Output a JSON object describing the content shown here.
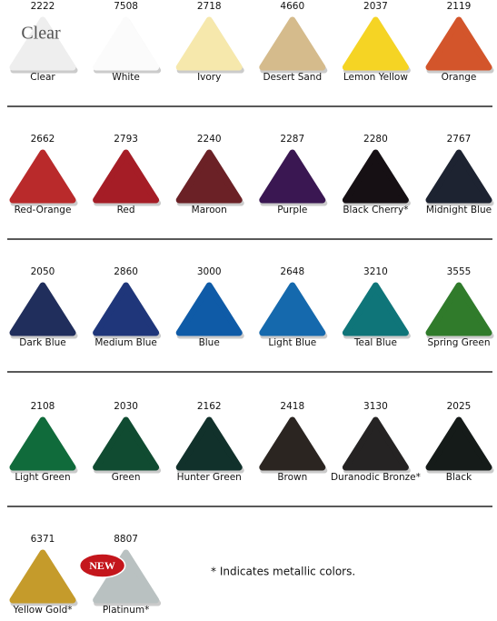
{
  "rows": [
    [
      {
        "code": "2222",
        "name": "Clear",
        "color": "#eeeeee",
        "overlay": "Clear"
      },
      {
        "code": "7508",
        "name": "White",
        "color": "#fbfbfb"
      },
      {
        "code": "2718",
        "name": "Ivory",
        "color": "#f6e8ac"
      },
      {
        "code": "4660",
        "name": "Desert Sand",
        "color": "#d5bb8c"
      },
      {
        "code": "2037",
        "name": "Lemon Yellow",
        "color": "#f5d424"
      },
      {
        "code": "2119",
        "name": "Orange",
        "color": "#d3552b"
      }
    ],
    [
      {
        "code": "2662",
        "name": "Red-Orange",
        "color": "#b92a2b"
      },
      {
        "code": "2793",
        "name": "Red",
        "color": "#a51d26"
      },
      {
        "code": "2240",
        "name": "Maroon",
        "color": "#6b2126"
      },
      {
        "code": "2287",
        "name": "Purple",
        "color": "#3a1752"
      },
      {
        "code": "2280",
        "name": "Black Cherry*",
        "color": "#161014"
      },
      {
        "code": "2767",
        "name": "Midnight Blue",
        "color": "#1d2331"
      }
    ],
    [
      {
        "code": "2050",
        "name": "Dark Blue",
        "color": "#202e5c"
      },
      {
        "code": "2860",
        "name": "Medium Blue",
        "color": "#1f367a"
      },
      {
        "code": "3000",
        "name": "Blue",
        "color": "#0f5ba7"
      },
      {
        "code": "2648",
        "name": "Light Blue",
        "color": "#1569ad"
      },
      {
        "code": "3210",
        "name": "Teal Blue",
        "color": "#0f7579"
      },
      {
        "code": "3555",
        "name": "Spring Green",
        "color": "#307b2b"
      }
    ],
    [
      {
        "code": "2108",
        "name": "Light Green",
        "color": "#106b3b"
      },
      {
        "code": "2030",
        "name": "Green",
        "color": "#104b31"
      },
      {
        "code": "2162",
        "name": "Hunter Green",
        "color": "#11312b"
      },
      {
        "code": "2418",
        "name": "Brown",
        "color": "#2b2521"
      },
      {
        "code": "3130",
        "name": "Duranodic Bronze*",
        "color": "#252323"
      },
      {
        "code": "2025",
        "name": "Black",
        "color": "#151b19"
      }
    ],
    [
      {
        "code": "6371",
        "name": "Yellow Gold*",
        "color": "#c59b2b"
      },
      {
        "code": "8807",
        "name": "Platinum*",
        "color": "#b9c1c1",
        "badge": "NEW"
      }
    ]
  ],
  "note": "* Indicates metallic colors."
}
